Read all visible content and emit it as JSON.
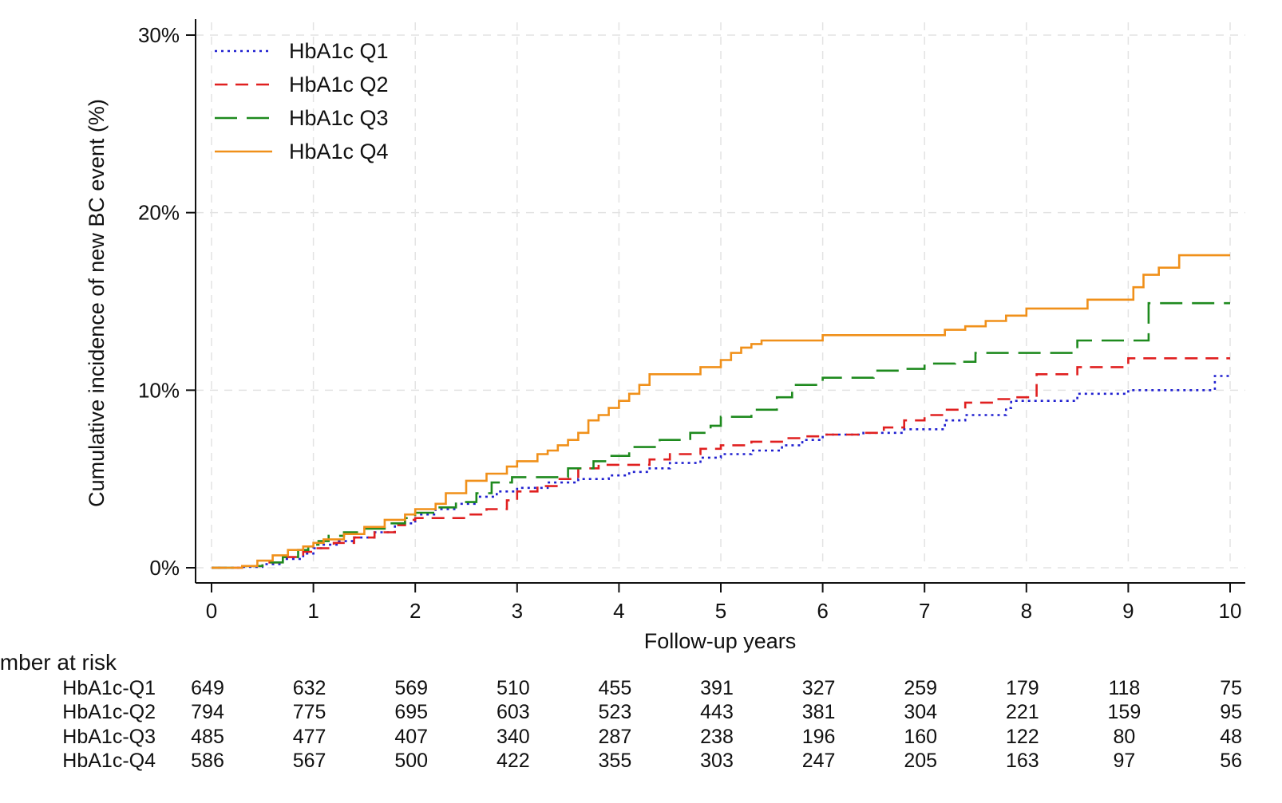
{
  "chart_data": {
    "type": "line",
    "xlabel": "Follow-up years",
    "ylabel": "Cumulative incidence of new BC event (%)",
    "xlim": [
      0,
      10
    ],
    "ylim": [
      0,
      30
    ],
    "x_ticks": [
      "0",
      "1",
      "2",
      "3",
      "4",
      "5",
      "6",
      "7",
      "8",
      "9",
      "10"
    ],
    "y_ticks": [
      "0%",
      "10%",
      "20%",
      "30%"
    ],
    "grid": true,
    "legend_position": "top-left",
    "series": [
      {
        "name": "HbA1c Q1",
        "color": "#2020d0",
        "dash": "dotted",
        "x": [
          0,
          0.3,
          0.5,
          0.7,
          0.9,
          1.0,
          1.1,
          1.25,
          1.4,
          1.6,
          1.8,
          2.0,
          2.2,
          2.4,
          2.6,
          2.8,
          3.0,
          3.3,
          3.6,
          3.9,
          4.1,
          4.3,
          4.5,
          4.8,
          5.0,
          5.3,
          5.6,
          5.8,
          6.0,
          6.4,
          6.8,
          7.2,
          7.4,
          7.8,
          7.85,
          8.1,
          8.5,
          9.0,
          9.5,
          9.85,
          10.0
        ],
        "y": [
          0,
          0.05,
          0.2,
          0.5,
          0.8,
          1.1,
          1.3,
          1.5,
          1.7,
          2.0,
          2.5,
          3.0,
          3.3,
          3.6,
          4.0,
          4.3,
          4.5,
          4.8,
          5.0,
          5.2,
          5.4,
          5.6,
          5.9,
          6.2,
          6.4,
          6.6,
          6.9,
          7.2,
          7.5,
          7.6,
          7.8,
          8.3,
          8.6,
          9.0,
          9.4,
          9.4,
          9.8,
          10.0,
          10.0,
          10.8,
          10.8
        ]
      },
      {
        "name": "HbA1c Q2",
        "color": "#e02020",
        "dash": "dashed",
        "x": [
          0,
          0.3,
          0.5,
          0.7,
          0.9,
          1.0,
          1.2,
          1.4,
          1.6,
          1.8,
          1.9,
          2.0,
          2.3,
          2.5,
          2.7,
          2.9,
          3.0,
          3.2,
          3.4,
          3.6,
          3.8,
          4.0,
          4.3,
          4.5,
          4.8,
          5.0,
          5.3,
          5.6,
          5.8,
          6.0,
          6.4,
          6.6,
          6.8,
          7.0,
          7.2,
          7.4,
          7.7,
          7.9,
          8.1,
          8.5,
          9.0,
          9.5,
          10.0
        ],
        "y": [
          0,
          0.1,
          0.3,
          0.6,
          0.9,
          1.1,
          1.4,
          1.7,
          2.0,
          2.4,
          2.7,
          2.8,
          2.8,
          3.0,
          3.3,
          3.8,
          4.3,
          4.6,
          5.0,
          5.6,
          5.8,
          5.8,
          6.1,
          6.4,
          6.7,
          6.9,
          7.1,
          7.3,
          7.4,
          7.5,
          7.6,
          7.9,
          8.3,
          8.6,
          8.9,
          9.3,
          9.5,
          9.6,
          10.9,
          11.3,
          11.8,
          11.8,
          11.8
        ]
      },
      {
        "name": "HbA1c Q3",
        "color": "#1e8a1e",
        "dash": "longdash",
        "x": [
          0,
          0.3,
          0.5,
          0.7,
          0.85,
          0.95,
          1.05,
          1.15,
          1.3,
          1.5,
          1.7,
          1.9,
          2.0,
          2.2,
          2.4,
          2.6,
          2.75,
          2.95,
          3.2,
          3.5,
          3.75,
          3.9,
          4.1,
          4.4,
          4.7,
          4.9,
          5.0,
          5.3,
          5.5,
          5.55,
          5.7,
          5.8,
          6.0,
          6.2,
          6.5,
          6.8,
          7.0,
          7.3,
          7.5,
          7.9,
          8.2,
          8.5,
          8.7,
          9.1,
          9.2,
          9.5,
          10.0
        ],
        "y": [
          0,
          0.1,
          0.3,
          0.6,
          1.0,
          1.3,
          1.5,
          1.8,
          2.0,
          2.2,
          2.5,
          2.8,
          3.1,
          3.4,
          3.7,
          4.2,
          4.8,
          5.1,
          5.1,
          5.6,
          6.0,
          6.3,
          6.8,
          7.2,
          7.6,
          8.0,
          8.5,
          8.9,
          8.9,
          9.6,
          10.3,
          10.3,
          10.7,
          10.7,
          11.1,
          11.2,
          11.5,
          11.6,
          12.1,
          12.1,
          12.1,
          12.8,
          12.8,
          12.8,
          14.9,
          14.9,
          14.9
        ]
      },
      {
        "name": "HbA1c Q4",
        "color": "#f0901a",
        "dash": "solid",
        "x": [
          0,
          0.3,
          0.45,
          0.6,
          0.75,
          0.9,
          1.0,
          1.1,
          1.3,
          1.5,
          1.7,
          1.9,
          2.0,
          2.2,
          2.3,
          2.5,
          2.7,
          2.9,
          3.0,
          3.2,
          3.3,
          3.4,
          3.5,
          3.6,
          3.7,
          3.8,
          3.9,
          4.0,
          4.1,
          4.2,
          4.3,
          4.6,
          4.8,
          5.0,
          5.1,
          5.2,
          5.3,
          5.4,
          5.7,
          6.0,
          6.5,
          7.0,
          7.2,
          7.4,
          7.6,
          7.8,
          8.0,
          8.4,
          8.6,
          9.0,
          9.05,
          9.15,
          9.3,
          9.5,
          10.0
        ],
        "y": [
          0,
          0.1,
          0.4,
          0.7,
          1.0,
          1.2,
          1.4,
          1.6,
          1.9,
          2.3,
          2.7,
          3.0,
          3.3,
          3.6,
          4.2,
          4.9,
          5.3,
          5.7,
          6.0,
          6.4,
          6.6,
          6.9,
          7.2,
          7.6,
          8.3,
          8.6,
          9.0,
          9.4,
          9.8,
          10.3,
          10.9,
          10.9,
          11.3,
          11.7,
          12.1,
          12.4,
          12.6,
          12.8,
          12.8,
          13.1,
          13.1,
          13.1,
          13.4,
          13.6,
          13.9,
          14.2,
          14.6,
          14.6,
          15.1,
          15.1,
          15.8,
          16.5,
          16.9,
          17.6,
          17.6
        ]
      }
    ]
  },
  "risk_table": {
    "title": "Number at risk",
    "rows": [
      {
        "label": "HbA1c-Q1",
        "values": [
          "649",
          "632",
          "569",
          "510",
          "455",
          "391",
          "327",
          "259",
          "179",
          "118",
          "75"
        ]
      },
      {
        "label": "HbA1c-Q2",
        "values": [
          "794",
          "775",
          "695",
          "603",
          "523",
          "443",
          "381",
          "304",
          "221",
          "159",
          "95"
        ]
      },
      {
        "label": "HbA1c-Q3",
        "values": [
          "485",
          "477",
          "407",
          "340",
          "287",
          "238",
          "196",
          "160",
          "122",
          "80",
          "48"
        ]
      },
      {
        "label": "HbA1c-Q4",
        "values": [
          "586",
          "567",
          "500",
          "422",
          "355",
          "303",
          "247",
          "205",
          "163",
          "97",
          "56"
        ]
      }
    ]
  }
}
